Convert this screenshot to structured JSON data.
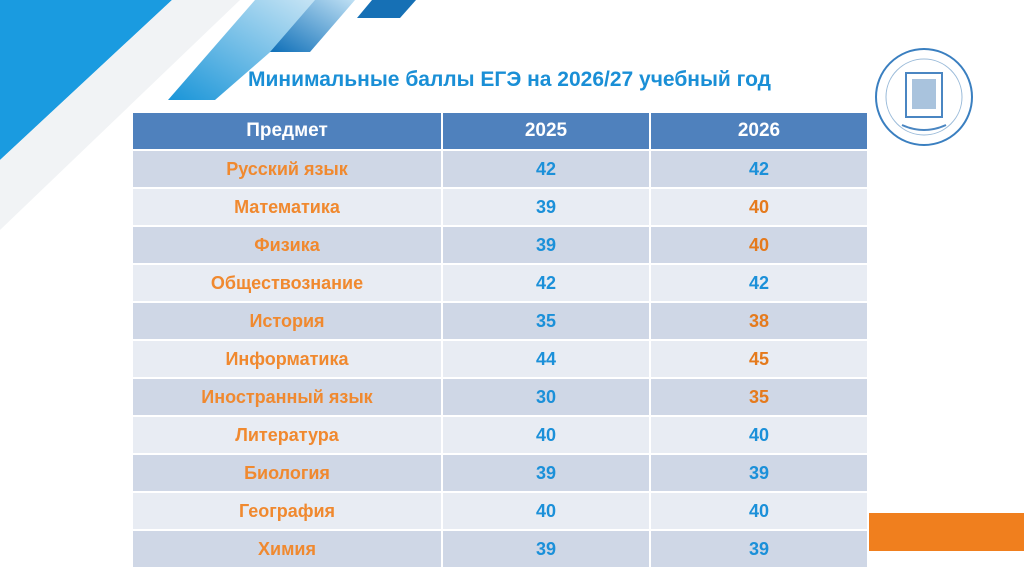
{
  "title": "Минимальные баллы ЕГЭ на 2026/27 учебный год",
  "logo_text": "АЛТАЙСКИЙ ГОСУДАРСТВЕННЫЙ ПЕДАГОГИЧЕСКИЙ УНИВЕРСИТЕТ",
  "colors": {
    "header": "#4f81bd",
    "subject": "#f0892f",
    "number": "#1b90d9",
    "changed": "#e57a1c"
  },
  "table": {
    "headers": [
      "Предмет",
      "2025",
      "2026"
    ],
    "rows": [
      {
        "subject": "Русский язык",
        "y2025": "42",
        "y2026": "42",
        "changed": false
      },
      {
        "subject": "Математика",
        "y2025": "39",
        "y2026": "40",
        "changed": true
      },
      {
        "subject": "Физика",
        "y2025": "39",
        "y2026": "40",
        "changed": true
      },
      {
        "subject": "Обществознание",
        "y2025": "42",
        "y2026": "42",
        "changed": false
      },
      {
        "subject": "История",
        "y2025": "35",
        "y2026": "38",
        "changed": true
      },
      {
        "subject": "Информатика",
        "y2025": "44",
        "y2026": "45",
        "changed": true
      },
      {
        "subject": "Иностранный язык",
        "y2025": "30",
        "y2026": "35",
        "changed": true
      },
      {
        "subject": "Литература",
        "y2025": "40",
        "y2026": "40",
        "changed": false
      },
      {
        "subject": "Биология",
        "y2025": "39",
        "y2026": "39",
        "changed": false
      },
      {
        "subject": "География",
        "y2025": "40",
        "y2026": "40",
        "changed": false
      },
      {
        "subject": "Химия",
        "y2025": "39",
        "y2026": "39",
        "changed": false
      }
    ]
  }
}
